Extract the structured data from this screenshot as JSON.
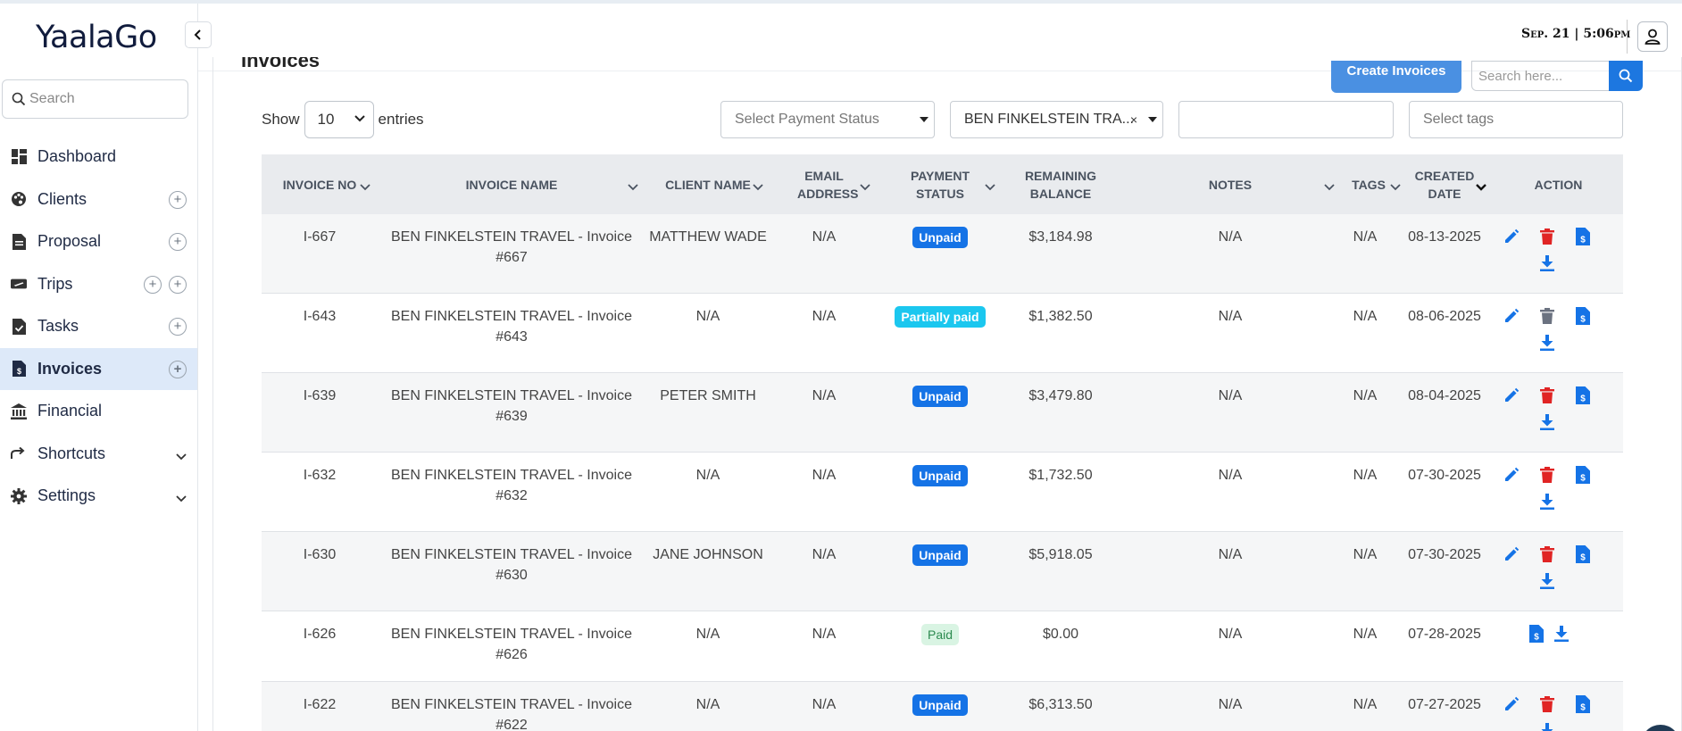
{
  "app": {
    "brand": "YaalaGo"
  },
  "header": {
    "datetime": "Sep. 21 | 5:06pm"
  },
  "sidebar": {
    "search_placeholder": "Search",
    "items": [
      {
        "label": "Dashboard",
        "icon": "dashboard-icon",
        "plus": 0
      },
      {
        "label": "Clients",
        "icon": "palette-icon",
        "plus": 1
      },
      {
        "label": "Proposal",
        "icon": "document-icon",
        "plus": 1
      },
      {
        "label": "Trips",
        "icon": "plane-ticket-icon",
        "plus": 2
      },
      {
        "label": "Tasks",
        "icon": "task-icon",
        "plus": 1
      },
      {
        "label": "Invoices",
        "icon": "invoice-icon",
        "plus": 1,
        "active": true
      },
      {
        "label": "Financial",
        "icon": "bank-icon",
        "plus": 0
      },
      {
        "label": "Shortcuts",
        "icon": "share-arrow-icon",
        "chevron": true
      },
      {
        "label": "Settings",
        "icon": "gear-icon",
        "chevron": true
      }
    ]
  },
  "main": {
    "title": "Invoices",
    "create_label": "Create Invoices",
    "search_placeholder": "Search here...",
    "show_label": "Show",
    "entries_value": "10",
    "entries_label": "entries",
    "filters": {
      "payment_status_placeholder": "Select Payment Status",
      "client_value": "BEN FINKELSTEIN TRA...",
      "clear_symbol": "×",
      "tags_placeholder": "Select tags"
    },
    "columns": [
      "INVOICE NO",
      "INVOICE NAME",
      "CLIENT NAME",
      "EMAIL ADDRESS",
      "PAYMENT STATUS",
      "REMAINING BALANCE",
      "NOTES",
      "TAGS",
      "CREATED DATE",
      "ACTION"
    ],
    "rows": [
      {
        "no": "I-667",
        "name1": "BEN FINKELSTEIN TRAVEL - Invoice",
        "name2": "#667",
        "client": "MATTHEW WADE",
        "email": "N/A",
        "status": "Unpaid",
        "balance": "$3,184.98",
        "notes": "N/A",
        "tags": "N/A",
        "date": "08-13-2025"
      },
      {
        "no": "I-643",
        "name1": "BEN FINKELSTEIN TRAVEL - Invoice",
        "name2": "#643",
        "client": "N/A",
        "email": "N/A",
        "status": "Partially paid",
        "balance": "$1,382.50",
        "notes": "N/A",
        "tags": "N/A",
        "date": "08-06-2025"
      },
      {
        "no": "I-639",
        "name1": "BEN FINKELSTEIN TRAVEL - Invoice",
        "name2": "#639",
        "client": "PETER SMITH",
        "email": "N/A",
        "status": "Unpaid",
        "balance": "$3,479.80",
        "notes": "N/A",
        "tags": "N/A",
        "date": "08-04-2025"
      },
      {
        "no": "I-632",
        "name1": "BEN FINKELSTEIN TRAVEL - Invoice",
        "name2": "#632",
        "client": "N/A",
        "email": "N/A",
        "status": "Unpaid",
        "balance": "$1,732.50",
        "notes": "N/A",
        "tags": "N/A",
        "date": "07-30-2025"
      },
      {
        "no": "I-630",
        "name1": "BEN FINKELSTEIN TRAVEL - Invoice",
        "name2": "#630",
        "client": "JANE JOHNSON",
        "email": "N/A",
        "status": "Unpaid",
        "balance": "$5,918.05",
        "notes": "N/A",
        "tags": "N/A",
        "date": "07-30-2025"
      },
      {
        "no": "I-626",
        "name1": "BEN FINKELSTEIN TRAVEL - Invoice",
        "name2": "#626",
        "client": "N/A",
        "email": "N/A",
        "status": "Paid",
        "balance": "$0.00",
        "notes": "N/A",
        "tags": "N/A",
        "date": "07-28-2025"
      },
      {
        "no": "I-622",
        "name1": "BEN FINKELSTEIN TRAVEL - Invoice",
        "name2": "#622",
        "client": "N/A",
        "email": "N/A",
        "status": "Unpaid",
        "balance": "$6,313.50",
        "notes": "N/A",
        "tags": "N/A",
        "date": "07-27-2025"
      }
    ]
  },
  "colors": {
    "accent": "#1573e6",
    "delete": "#e02424",
    "delete_disabled": "#6b7280",
    "partial": "#1bc7ef"
  }
}
